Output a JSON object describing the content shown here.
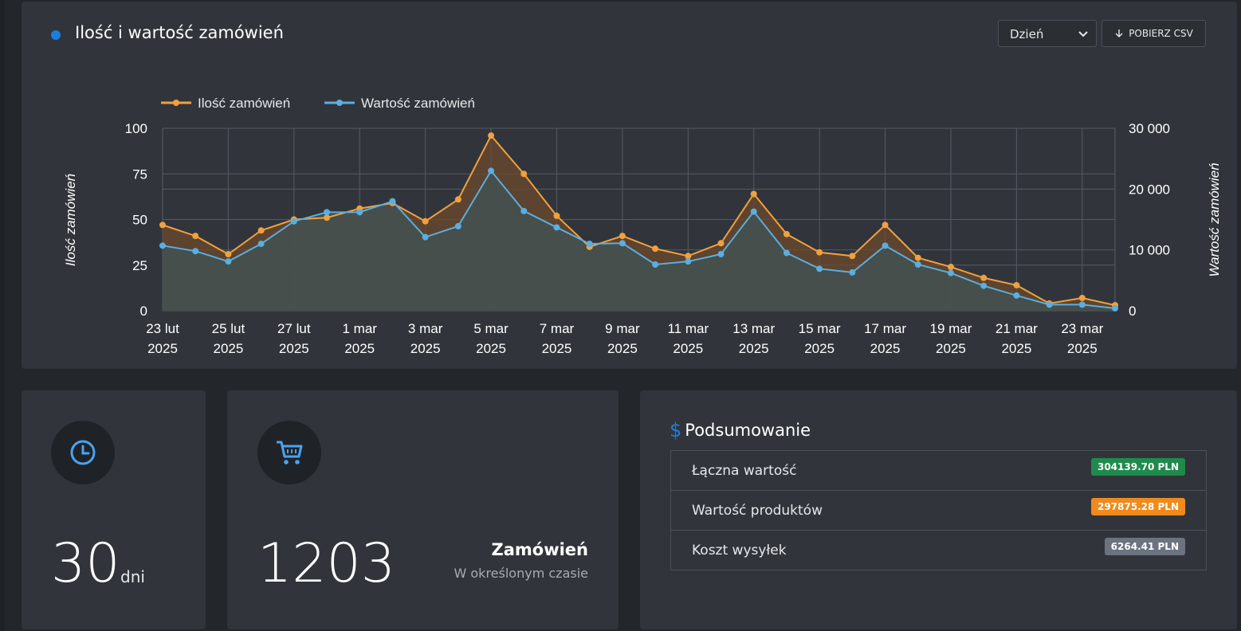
{
  "header": {
    "title": "Ilość i wartość zamówień",
    "period_select": "Dzień",
    "csv_button": "POBIERZ CSV"
  },
  "chart_data": {
    "type": "line",
    "x": [
      "23 lut 2025",
      "24 lut 2025",
      "25 lut 2025",
      "26 lut 2025",
      "27 lut 2025",
      "28 lut 2025",
      "1 mar 2025",
      "2 mar 2025",
      "3 mar 2025",
      "4 mar 2025",
      "5 mar 2025",
      "6 mar 2025",
      "7 mar 2025",
      "8 mar 2025",
      "9 mar 2025",
      "10 mar 2025",
      "11 mar 2025",
      "12 mar 2025",
      "13 mar 2025",
      "14 mar 2025",
      "15 mar 2025",
      "16 mar 2025",
      "17 mar 2025",
      "18 mar 2025",
      "19 mar 2025",
      "20 mar 2025",
      "21 mar 2025",
      "22 mar 2025",
      "23 mar 2025",
      "24 mar 2025"
    ],
    "tick_labels": [
      [
        "23 lut",
        "2025"
      ],
      [
        "25 lut",
        "2025"
      ],
      [
        "27 lut",
        "2025"
      ],
      [
        "1 mar",
        "2025"
      ],
      [
        "3 mar",
        "2025"
      ],
      [
        "5 mar",
        "2025"
      ],
      [
        "7 mar",
        "2025"
      ],
      [
        "9 mar",
        "2025"
      ],
      [
        "11 mar",
        "2025"
      ],
      [
        "13 mar",
        "2025"
      ],
      [
        "15 mar",
        "2025"
      ],
      [
        "17 mar",
        "2025"
      ],
      [
        "19 mar",
        "2025"
      ],
      [
        "21 mar",
        "2025"
      ],
      [
        "23 mar",
        "2025"
      ]
    ],
    "series": [
      {
        "name": "Ilość zamówień",
        "axis": "left",
        "color": "#f0a13e",
        "values": [
          47,
          41,
          31,
          44,
          50,
          51,
          56,
          59,
          49,
          61,
          96,
          75,
          52,
          35,
          41,
          34,
          30,
          37,
          64,
          42,
          32,
          30,
          47,
          29,
          24,
          18,
          14,
          4,
          7,
          3
        ]
      },
      {
        "name": "Wartość zamówień",
        "axis": "right",
        "color": "#5aaee0",
        "values": [
          10700,
          9800,
          8100,
          11000,
          14700,
          16200,
          16200,
          18000,
          12100,
          13900,
          23000,
          16400,
          13700,
          11000,
          11100,
          7600,
          8100,
          9300,
          16300,
          9500,
          6900,
          6300,
          10700,
          7600,
          6200,
          4100,
          2500,
          1000,
          1000,
          400
        ]
      }
    ],
    "y_left": {
      "label": "Ilość zamówień",
      "lim": [
        0,
        100
      ],
      "ticks": [
        "0",
        "25",
        "50",
        "75",
        "100"
      ]
    },
    "y_right": {
      "label": "Wartość zamówień",
      "lim": [
        0,
        30000
      ],
      "ticks": [
        "0",
        "10 000",
        "20 000",
        "30 000"
      ]
    },
    "grid": true,
    "legend": "top-left"
  },
  "stats": {
    "days": {
      "value": "30",
      "unit": "dni"
    },
    "orders": {
      "value": "1203",
      "title": "Zamówień",
      "subtitle": "W określonym czasie"
    }
  },
  "summary": {
    "title": "Podsumowanie",
    "rows": [
      {
        "label": "Łączna wartość",
        "value": "304139.70 PLN",
        "color": "#1f8a4c"
      },
      {
        "label": "Wartość produktów",
        "value": "297875.28 PLN",
        "color": "#f08a1c"
      },
      {
        "label": "Koszt wysyłek",
        "value": "6264.41 PLN",
        "color": "#6b7280"
      }
    ]
  }
}
